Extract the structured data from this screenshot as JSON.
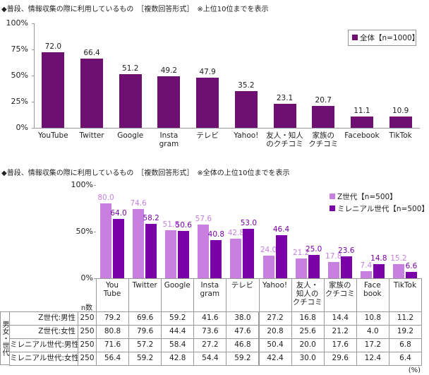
{
  "chart_data": [
    {
      "type": "bar",
      "title": "◆普段、情報収集の際に利用しているもの　［複数回答形式］　※上位10位までを表示",
      "categories": [
        "YouTube",
        "Twitter",
        "Google",
        "Insta\ngram",
        "テレビ",
        "Yahoo!",
        "友人・知人\nのクチコミ",
        "家族の\nクチコミ",
        "Facebook",
        "TikTok"
      ],
      "series": [
        {
          "name": "全体【n=1000】",
          "color": "#6e0f72",
          "values": [
            72.0,
            66.4,
            51.2,
            49.2,
            47.9,
            35.2,
            23.1,
            20.7,
            11.1,
            10.9
          ],
          "value_labels": [
            "72.0",
            "66.4",
            "51.2",
            "49.2",
            "47.9",
            "35.2",
            "23.1",
            "20.7",
            "11.1",
            "10.9"
          ]
        }
      ],
      "ylim": [
        0,
        100
      ],
      "yticks": [
        {
          "value": 0,
          "label": "0%"
        },
        {
          "value": 25,
          "label": "25%"
        },
        {
          "value": 50,
          "label": "50%"
        },
        {
          "value": 75,
          "label": "75%"
        },
        {
          "value": 100,
          "label": "100%"
        }
      ],
      "grid": false,
      "legend": "top-right"
    },
    {
      "type": "bar",
      "title": "◆普段、情報収集の際に利用しているもの　［複数回答形式］　※全体の上位10位までを表示",
      "categories": [
        "You\nTube",
        "Twitter",
        "Google",
        "Insta\ngram",
        "テレビ",
        "Yahoo!",
        "友人・\n知人の\nクチコミ",
        "家族の\nクチコミ",
        "Face\nbook",
        "TikTok"
      ],
      "series": [
        {
          "name": "Z世代【n=500】",
          "color": "#c77fe0",
          "values": [
            80.0,
            74.6,
            51.8,
            57.6,
            42.8,
            24.0,
            21.2,
            17.8,
            7.4,
            15.2
          ],
          "value_labels": [
            "80.0",
            "74.6",
            "51.8",
            "57.6",
            "42.8",
            "24.0",
            "21.2",
            "17.8",
            "7.4",
            "15.2"
          ]
        },
        {
          "name": "ミレニアル世代【n=500】",
          "color": "#7a00a8",
          "values": [
            64.0,
            58.2,
            50.6,
            40.8,
            53.0,
            46.4,
            25.0,
            23.6,
            14.8,
            6.6
          ],
          "value_labels": [
            "64.0",
            "58.2",
            "50.6",
            "40.8",
            "53.0",
            "46.4",
            "25.0",
            "23.6",
            "14.8",
            "6.6"
          ]
        }
      ],
      "ylim": [
        0,
        100
      ],
      "yticks": [
        {
          "value": 0,
          "label": "0%"
        },
        {
          "value": 50,
          "label": "50%"
        },
        {
          "value": 100,
          "label": "100%"
        }
      ],
      "grid": false,
      "legend": "top-right"
    }
  ],
  "table": {
    "n_label": "n数",
    "group_label": "男女・世代",
    "rows": [
      {
        "label": "Z世代:男性",
        "n": 250,
        "values": [
          "79.2",
          "69.6",
          "59.2",
          "41.6",
          "38.0",
          "27.2",
          "16.8",
          "14.4",
          "10.8",
          "11.2"
        ]
      },
      {
        "label": "Z世代:女性",
        "n": 250,
        "values": [
          "80.8",
          "79.6",
          "44.4",
          "73.6",
          "47.6",
          "20.8",
          "25.6",
          "21.2",
          "4.0",
          "19.2"
        ]
      },
      {
        "label": "ミレニアル世代:男性",
        "n": 250,
        "values": [
          "71.6",
          "57.2",
          "58.4",
          "27.2",
          "46.8",
          "50.4",
          "20.0",
          "17.6",
          "17.2",
          "6.8"
        ]
      },
      {
        "label": "ミレニアル世代:女性",
        "n": 250,
        "values": [
          "56.4",
          "59.2",
          "42.8",
          "54.4",
          "59.2",
          "42.4",
          "30.0",
          "29.6",
          "12.4",
          "6.4"
        ]
      }
    ],
    "unit": "(%)"
  }
}
